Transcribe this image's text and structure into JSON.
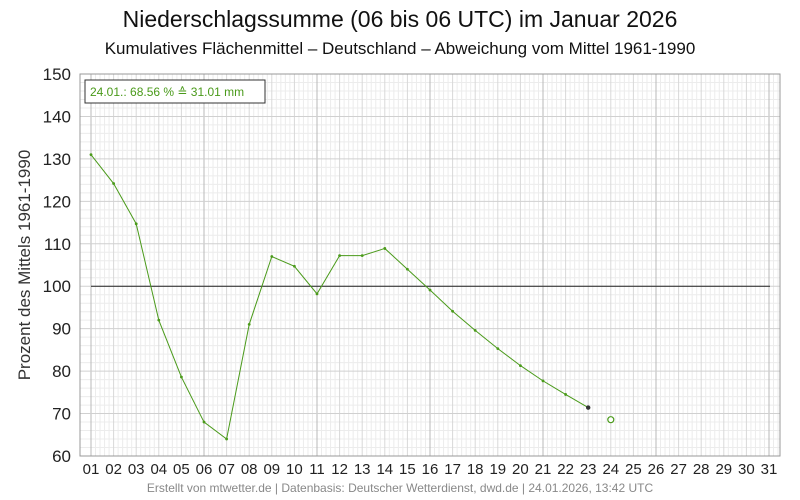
{
  "header": {
    "title": "Niederschlagssumme (06 bis 06 UTC) im Januar 2026",
    "subtitle": "Kumulatives Flächenmittel – Deutschland – Abweichung vom Mittel 1961-1990"
  },
  "footer": {
    "text": "Erstellt von mtwetter.de | Datenbasis: Deutscher Wetterdienst, dwd.de | 24.01.2026, 13:42 UTC"
  },
  "chart_data": {
    "type": "line",
    "title": "Niederschlagssumme (06 bis 06 UTC) im Januar 2026",
    "subtitle": "Kumulatives Flächenmittel – Deutschland – Abweichung vom Mittel 1961-1990",
    "xlabel": "",
    "ylabel": "Prozent des Mittels 1961-1990",
    "categories": [
      "01",
      "02",
      "03",
      "04",
      "05",
      "06",
      "07",
      "08",
      "09",
      "10",
      "11",
      "12",
      "13",
      "14",
      "15",
      "16",
      "17",
      "18",
      "19",
      "20",
      "21",
      "22",
      "23",
      "24",
      "25",
      "26",
      "27",
      "28",
      "29",
      "30",
      "31"
    ],
    "ylim": [
      60,
      150
    ],
    "yticks": [
      60,
      70,
      80,
      90,
      100,
      110,
      120,
      130,
      140,
      150
    ],
    "reference_line": 100,
    "grid": true,
    "color": "#4a9a1a",
    "series": [
      {
        "values": [
          131,
          124.2,
          114.7,
          92,
          78.6,
          68,
          64,
          91,
          107,
          104.7,
          98.2,
          107.2,
          107.2,
          108.9,
          104,
          99.1,
          94.1,
          89.6,
          85.3,
          81.3,
          77.7,
          74.5,
          71.4,
          null,
          null,
          null,
          null,
          null,
          null,
          null,
          null
        ]
      }
    ],
    "current_point": {
      "x": "24",
      "y": 68.56
    },
    "annotation": "24.01.: 68.56 % ≙ 31.01 mm"
  }
}
